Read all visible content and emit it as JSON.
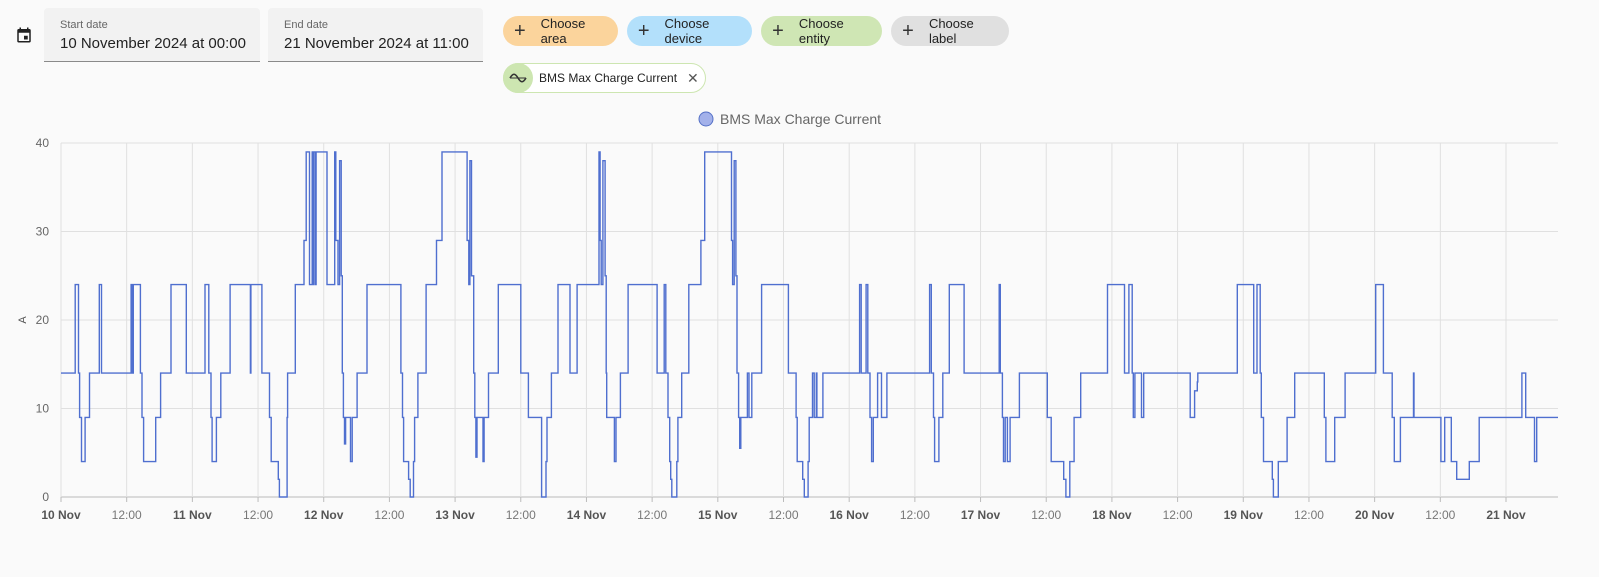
{
  "date_range": {
    "icon": "calendar-icon",
    "start": {
      "label": "Start date",
      "value": "10 November 2024 at 00:00"
    },
    "end": {
      "label": "End date",
      "value": "21 November 2024 at 11:00"
    }
  },
  "target_picker": {
    "chips": [
      {
        "label": "Choose area",
        "icon": "plus-icon",
        "color": "#fbd49c"
      },
      {
        "label": "Choose device",
        "icon": "plus-icon",
        "color": "#b3e0fb"
      },
      {
        "label": "Choose entity",
        "icon": "plus-icon",
        "color": "#cfe6b4"
      },
      {
        "label": "Choose label",
        "icon": "plus-icon",
        "color": "#e0e0e0"
      }
    ],
    "selected": [
      {
        "label": "BMS Max Charge Current",
        "icon": "sine-wave-icon",
        "remove_icon": "close-icon",
        "color": "#cde6b1"
      }
    ]
  },
  "chart_data": {
    "type": "line",
    "step": true,
    "legend": {
      "position": "top-center",
      "entries": [
        "BMS Max Charge Current"
      ]
    },
    "ylabel": "A",
    "ylim": [
      0,
      40
    ],
    "yticks": [
      0,
      10,
      20,
      30,
      40
    ],
    "xlim": [
      "2024-11-10T00:00",
      "2024-11-21T09:30"
    ],
    "xticks": [
      {
        "t": "2024-11-10T00:00",
        "label": "10 Nov",
        "bold": true
      },
      {
        "t": "2024-11-10T12:00",
        "label": "12:00",
        "bold": false
      },
      {
        "t": "2024-11-11T00:00",
        "label": "11 Nov",
        "bold": true
      },
      {
        "t": "2024-11-11T12:00",
        "label": "12:00",
        "bold": false
      },
      {
        "t": "2024-11-12T00:00",
        "label": "12 Nov",
        "bold": true
      },
      {
        "t": "2024-11-12T12:00",
        "label": "12:00",
        "bold": false
      },
      {
        "t": "2024-11-13T00:00",
        "label": "13 Nov",
        "bold": true
      },
      {
        "t": "2024-11-13T12:00",
        "label": "12:00",
        "bold": false
      },
      {
        "t": "2024-11-14T00:00",
        "label": "14 Nov",
        "bold": true
      },
      {
        "t": "2024-11-14T12:00",
        "label": "12:00",
        "bold": false
      },
      {
        "t": "2024-11-15T00:00",
        "label": "15 Nov",
        "bold": true
      },
      {
        "t": "2024-11-15T12:00",
        "label": "12:00",
        "bold": false
      },
      {
        "t": "2024-11-16T00:00",
        "label": "16 Nov",
        "bold": true
      },
      {
        "t": "2024-11-16T12:00",
        "label": "12:00",
        "bold": false
      },
      {
        "t": "2024-11-17T00:00",
        "label": "17 Nov",
        "bold": true
      },
      {
        "t": "2024-11-17T12:00",
        "label": "12:00",
        "bold": false
      },
      {
        "t": "2024-11-18T00:00",
        "label": "18 Nov",
        "bold": true
      },
      {
        "t": "2024-11-18T12:00",
        "label": "12:00",
        "bold": false
      },
      {
        "t": "2024-11-19T00:00",
        "label": "19 Nov",
        "bold": true
      },
      {
        "t": "2024-11-19T12:00",
        "label": "12:00",
        "bold": false
      },
      {
        "t": "2024-11-20T00:00",
        "label": "20 Nov",
        "bold": true
      },
      {
        "t": "2024-11-20T12:00",
        "label": "12:00",
        "bold": false
      },
      {
        "t": "2024-11-21T00:00",
        "label": "21 Nov",
        "bold": true
      }
    ],
    "grid": true,
    "series": [
      {
        "name": "BMS Max Charge Current",
        "color": "#4f6fcf",
        "points": [
          [
            "2024-11-10T00:00",
            14
          ],
          [
            "2024-11-10T02:36",
            24
          ],
          [
            "2024-11-10T03:12",
            14
          ],
          [
            "2024-11-10T03:24",
            9
          ],
          [
            "2024-11-10T03:45",
            4
          ],
          [
            "2024-11-10T04:24",
            9
          ],
          [
            "2024-11-10T05:12",
            14
          ],
          [
            "2024-11-10T07:00",
            24
          ],
          [
            "2024-11-10T07:24",
            14
          ],
          [
            "2024-11-10T12:48",
            24
          ],
          [
            "2024-11-10T13:00",
            14
          ],
          [
            "2024-11-10T13:12",
            24
          ],
          [
            "2024-11-10T14:30",
            14
          ],
          [
            "2024-11-10T14:48",
            9
          ],
          [
            "2024-11-10T15:06",
            4
          ],
          [
            "2024-11-10T17:18",
            9
          ],
          [
            "2024-11-10T18:12",
            14
          ],
          [
            "2024-11-10T20:06",
            24
          ],
          [
            "2024-11-10T22:54",
            14
          ],
          [
            "2024-11-11T02:18",
            24
          ],
          [
            "2024-11-11T03:00",
            14
          ],
          [
            "2024-11-11T03:24",
            9
          ],
          [
            "2024-11-11T03:36",
            4
          ],
          [
            "2024-11-11T04:24",
            9
          ],
          [
            "2024-11-11T05:12",
            14
          ],
          [
            "2024-11-11T06:54",
            24
          ],
          [
            "2024-11-11T10:36",
            14
          ],
          [
            "2024-11-11T10:42",
            24
          ],
          [
            "2024-11-11T12:42",
            14
          ],
          [
            "2024-11-11T14:06",
            9
          ],
          [
            "2024-11-11T14:24",
            4
          ],
          [
            "2024-11-11T15:42",
            2
          ],
          [
            "2024-11-11T15:54",
            0
          ],
          [
            "2024-11-11T17:18",
            9
          ],
          [
            "2024-11-11T17:24",
            14
          ],
          [
            "2024-11-11T18:48",
            24
          ],
          [
            "2024-11-11T20:24",
            29
          ],
          [
            "2024-11-11T20:48",
            39
          ],
          [
            "2024-11-11T21:24",
            24
          ],
          [
            "2024-11-11T21:54",
            39
          ],
          [
            "2024-11-11T22:06",
            24
          ],
          [
            "2024-11-11T22:12",
            39
          ],
          [
            "2024-11-11T22:30",
            24
          ],
          [
            "2024-11-11T22:36",
            39
          ],
          [
            "2024-11-12T00:36",
            24
          ],
          [
            "2024-11-12T02:00",
            39
          ],
          [
            "2024-11-12T02:12",
            29
          ],
          [
            "2024-11-12T02:36",
            24
          ],
          [
            "2024-11-12T02:54",
            38
          ],
          [
            "2024-11-12T03:12",
            25
          ],
          [
            "2024-11-12T03:24",
            14
          ],
          [
            "2024-11-12T03:36",
            9
          ],
          [
            "2024-11-12T03:48",
            6
          ],
          [
            "2024-11-12T04:00",
            9
          ],
          [
            "2024-11-12T04:54",
            4
          ],
          [
            "2024-11-12T05:12",
            9
          ],
          [
            "2024-11-12T06:06",
            14
          ],
          [
            "2024-11-12T07:54",
            24
          ],
          [
            "2024-11-12T14:06",
            14
          ],
          [
            "2024-11-12T14:24",
            9
          ],
          [
            "2024-11-12T14:36",
            4
          ],
          [
            "2024-11-12T15:30",
            2
          ],
          [
            "2024-11-12T15:48",
            0
          ],
          [
            "2024-11-12T16:24",
            4
          ],
          [
            "2024-11-12T16:36",
            9
          ],
          [
            "2024-11-12T17:12",
            14
          ],
          [
            "2024-11-12T18:42",
            24
          ],
          [
            "2024-11-12T20:36",
            29
          ],
          [
            "2024-11-12T21:36",
            39
          ],
          [
            "2024-11-13T02:12",
            29
          ],
          [
            "2024-11-13T02:30",
            24
          ],
          [
            "2024-11-13T02:42",
            38
          ],
          [
            "2024-11-13T03:00",
            25
          ],
          [
            "2024-11-13T03:24",
            14
          ],
          [
            "2024-11-13T03:36",
            9
          ],
          [
            "2024-11-13T03:48",
            4.5
          ],
          [
            "2024-11-13T04:00",
            9
          ],
          [
            "2024-11-13T05:06",
            4
          ],
          [
            "2024-11-13T05:18",
            9
          ],
          [
            "2024-11-13T06:06",
            14
          ],
          [
            "2024-11-13T07:54",
            24
          ],
          [
            "2024-11-13T12:00",
            14
          ],
          [
            "2024-11-13T13:24",
            9
          ],
          [
            "2024-11-13T15:48",
            0
          ],
          [
            "2024-11-13T16:36",
            4
          ],
          [
            "2024-11-13T16:48",
            9
          ],
          [
            "2024-11-13T17:36",
            14
          ],
          [
            "2024-11-13T18:48",
            24
          ],
          [
            "2024-11-13T21:00",
            14
          ],
          [
            "2024-11-13T22:18",
            24
          ],
          [
            "2024-11-14T02:18",
            39
          ],
          [
            "2024-11-14T02:30",
            29
          ],
          [
            "2024-11-14T02:42",
            24
          ],
          [
            "2024-11-14T03:00",
            38
          ],
          [
            "2024-11-14T03:24",
            25
          ],
          [
            "2024-11-14T03:36",
            14
          ],
          [
            "2024-11-14T03:42",
            9
          ],
          [
            "2024-11-14T05:06",
            4
          ],
          [
            "2024-11-14T05:24",
            9
          ],
          [
            "2024-11-14T06:12",
            14
          ],
          [
            "2024-11-14T07:36",
            24
          ],
          [
            "2024-11-14T12:54",
            14
          ],
          [
            "2024-11-14T14:12",
            24
          ],
          [
            "2024-11-14T14:30",
            14
          ],
          [
            "2024-11-14T14:54",
            9
          ],
          [
            "2024-11-14T15:12",
            4
          ],
          [
            "2024-11-14T15:24",
            2
          ],
          [
            "2024-11-14T15:36",
            0
          ],
          [
            "2024-11-14T16:30",
            4
          ],
          [
            "2024-11-14T16:42",
            9
          ],
          [
            "2024-11-14T17:24",
            14
          ],
          [
            "2024-11-14T18:42",
            24
          ],
          [
            "2024-11-14T20:54",
            29
          ],
          [
            "2024-11-14T21:36",
            39
          ],
          [
            "2024-11-15T02:30",
            29
          ],
          [
            "2024-11-15T02:42",
            24
          ],
          [
            "2024-11-15T03:00",
            38
          ],
          [
            "2024-11-15T03:18",
            25
          ],
          [
            "2024-11-15T03:30",
            14
          ],
          [
            "2024-11-15T03:48",
            9
          ],
          [
            "2024-11-15T04:00",
            5.5
          ],
          [
            "2024-11-15T04:12",
            9
          ],
          [
            "2024-11-15T05:24",
            14
          ],
          [
            "2024-11-15T05:42",
            9
          ],
          [
            "2024-11-15T06:12",
            14
          ],
          [
            "2024-11-15T08:00",
            24
          ],
          [
            "2024-11-15T12:54",
            14
          ],
          [
            "2024-11-15T14:18",
            9
          ],
          [
            "2024-11-15T14:30",
            4
          ],
          [
            "2024-11-15T15:30",
            2
          ],
          [
            "2024-11-15T15:48",
            0
          ],
          [
            "2024-11-15T16:30",
            4
          ],
          [
            "2024-11-15T16:42",
            9
          ],
          [
            "2024-11-15T17:18",
            14
          ],
          [
            "2024-11-15T17:36",
            9
          ],
          [
            "2024-11-15T18:00",
            14
          ],
          [
            "2024-11-15T18:06",
            9
          ],
          [
            "2024-11-15T19:12",
            14
          ],
          [
            "2024-11-16T01:54",
            24
          ],
          [
            "2024-11-16T02:12",
            14
          ],
          [
            "2024-11-16T03:06",
            24
          ],
          [
            "2024-11-16T03:24",
            14
          ],
          [
            "2024-11-16T03:48",
            9
          ],
          [
            "2024-11-16T04:06",
            4
          ],
          [
            "2024-11-16T04:24",
            9
          ],
          [
            "2024-11-16T05:12",
            14
          ],
          [
            "2024-11-16T05:54",
            9
          ],
          [
            "2024-11-16T06:54",
            14
          ],
          [
            "2024-11-16T14:42",
            24
          ],
          [
            "2024-11-16T15:00",
            14
          ],
          [
            "2024-11-16T15:24",
            9
          ],
          [
            "2024-11-16T15:36",
            4
          ],
          [
            "2024-11-16T16:24",
            9
          ],
          [
            "2024-11-16T17:06",
            14
          ],
          [
            "2024-11-16T18:18",
            24
          ],
          [
            "2024-11-16T21:00",
            14
          ],
          [
            "2024-11-17T03:24",
            24
          ],
          [
            "2024-11-17T03:36",
            14
          ],
          [
            "2024-11-17T04:00",
            9
          ],
          [
            "2024-11-17T04:12",
            4
          ],
          [
            "2024-11-17T04:30",
            9
          ],
          [
            "2024-11-17T04:54",
            4
          ],
          [
            "2024-11-17T05:24",
            9
          ],
          [
            "2024-11-17T07:06",
            14
          ],
          [
            "2024-11-17T12:12",
            9
          ],
          [
            "2024-11-17T12:54",
            4
          ],
          [
            "2024-11-17T15:12",
            2
          ],
          [
            "2024-11-17T15:36",
            0
          ],
          [
            "2024-11-17T16:18",
            4
          ],
          [
            "2024-11-17T17:06",
            9
          ],
          [
            "2024-11-17T18:18",
            14
          ],
          [
            "2024-11-17T23:12",
            24
          ],
          [
            "2024-11-18T02:18",
            14
          ],
          [
            "2024-11-18T03:06",
            24
          ],
          [
            "2024-11-18T03:42",
            14
          ],
          [
            "2024-11-18T03:54",
            9
          ],
          [
            "2024-11-18T04:12",
            14
          ],
          [
            "2024-11-18T05:24",
            9
          ],
          [
            "2024-11-18T05:48",
            14
          ],
          [
            "2024-11-18T14:18",
            9
          ],
          [
            "2024-11-18T15:06",
            12
          ],
          [
            "2024-11-18T15:36",
            13
          ],
          [
            "2024-11-18T15:42",
            14
          ],
          [
            "2024-11-18T22:54",
            24
          ],
          [
            "2024-11-19T01:54",
            14
          ],
          [
            "2024-11-19T02:30",
            24
          ],
          [
            "2024-11-19T03:06",
            14
          ],
          [
            "2024-11-19T03:18",
            9
          ],
          [
            "2024-11-19T03:42",
            4
          ],
          [
            "2024-11-19T05:18",
            2
          ],
          [
            "2024-11-19T05:30",
            0
          ],
          [
            "2024-11-19T06:24",
            4
          ],
          [
            "2024-11-19T08:00",
            9
          ],
          [
            "2024-11-19T09:24",
            14
          ],
          [
            "2024-11-19T14:48",
            9
          ],
          [
            "2024-11-19T15:06",
            4
          ],
          [
            "2024-11-19T16:42",
            9
          ],
          [
            "2024-11-19T18:36",
            14
          ],
          [
            "2024-11-20T00:12",
            24
          ],
          [
            "2024-11-20T01:36",
            14
          ],
          [
            "2024-11-20T03:12",
            9
          ],
          [
            "2024-11-20T03:36",
            4
          ],
          [
            "2024-11-20T04:42",
            9
          ],
          [
            "2024-11-20T07:06",
            14
          ],
          [
            "2024-11-20T07:12",
            9
          ],
          [
            "2024-11-20T12:06",
            4
          ],
          [
            "2024-11-20T12:48",
            9
          ],
          [
            "2024-11-20T14:00",
            4
          ],
          [
            "2024-11-20T15:00",
            2
          ],
          [
            "2024-11-20T17:18",
            4
          ],
          [
            "2024-11-20T19:06",
            9
          ],
          [
            "2024-11-21T02:54",
            14
          ],
          [
            "2024-11-21T03:36",
            9
          ],
          [
            "2024-11-21T05:12",
            4
          ],
          [
            "2024-11-21T05:36",
            9
          ],
          [
            "2024-11-21T09:30",
            9
          ]
        ]
      }
    ]
  }
}
